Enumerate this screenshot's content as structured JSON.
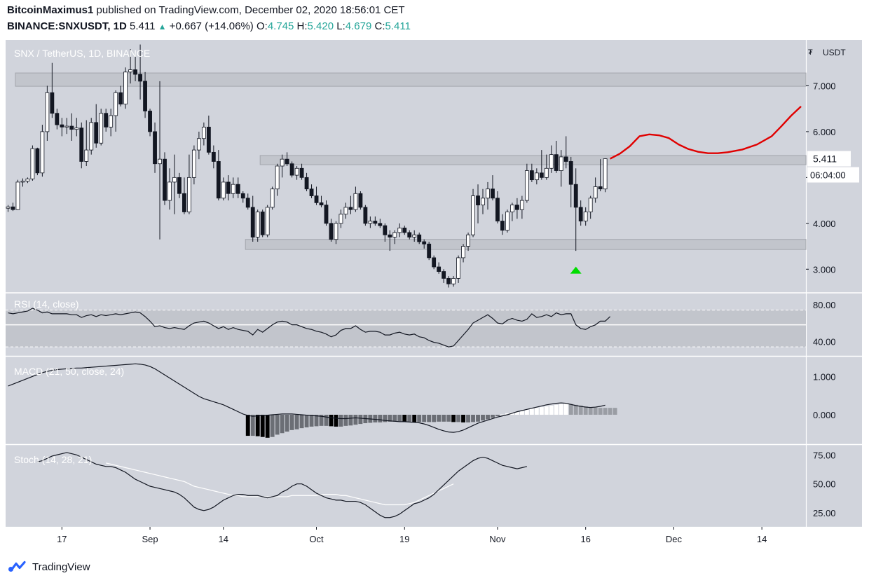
{
  "header": {
    "author": "BitcoinMaximus1",
    "published_text": "published on TradingView.com, December 02, 2020 18:56:01 CET",
    "symbol": "BINANCE:SNXUSDT, 1D",
    "last": "5.411",
    "change": "+0.667 (+14.06%)",
    "o_label": "O:",
    "o_value": "4.745",
    "h_label": "H:",
    "h_value": "5.420",
    "l_label": "L:",
    "l_value": "4.679",
    "c_label": "C:",
    "c_value": "5.411"
  },
  "footer": {
    "brand": "TradingView",
    "logo_icon": "tradingview-logo-icon"
  },
  "colors": {
    "bg": "#d1d4dc",
    "up": "#ffffff",
    "down": "#131722",
    "forecast": "#e00000",
    "arrow": "#00dd00",
    "rsi_band": "#c2c5cc"
  },
  "chart_data": {
    "type": "candlestick",
    "title": "SNX / TetherUS, 1D, BINANCE",
    "currency_label": "USDT",
    "currency_icon": "tether-currency-icon",
    "x_tick_labels": [
      "17",
      "Sep",
      "14",
      "Oct",
      "19",
      "Nov",
      "16",
      "Dec",
      "14"
    ],
    "x_tick_indices": [
      11,
      29,
      44,
      63,
      81,
      100,
      118,
      136,
      154
    ],
    "x_range": [
      -0.5,
      163
    ],
    "price_axis": {
      "ylim": [
        2.5,
        8.0
      ],
      "ticks": [
        3.0,
        4.0,
        5.0,
        6.0,
        7.0
      ],
      "tick_labels": [
        "3.000",
        "4.000",
        "5.000",
        "6.000",
        "7.000"
      ]
    },
    "last_price_label": "5.411",
    "countdown_label": "06:04:00",
    "candles": [
      [
        4.33,
        4.4,
        4.25,
        4.36
      ],
      [
        4.36,
        4.45,
        4.27,
        4.3
      ],
      [
        4.3,
        4.95,
        4.29,
        4.9
      ],
      [
        4.9,
        4.98,
        4.8,
        4.92
      ],
      [
        4.92,
        5.0,
        4.88,
        4.97
      ],
      [
        4.97,
        5.7,
        4.93,
        5.63
      ],
      [
        5.63,
        5.65,
        5.05,
        5.1
      ],
      [
        5.1,
        6.15,
        5.02,
        6.0
      ],
      [
        6.0,
        7.0,
        5.8,
        6.85
      ],
      [
        6.85,
        7.5,
        6.3,
        6.4
      ],
      [
        6.4,
        6.5,
        6.05,
        6.15
      ],
      [
        6.15,
        6.3,
        5.9,
        6.1
      ],
      [
        6.1,
        6.3,
        5.95,
        6.12
      ],
      [
        6.12,
        6.4,
        5.8,
        6.05
      ],
      [
        6.05,
        6.3,
        5.9,
        6.08
      ],
      [
        6.08,
        6.2,
        5.2,
        5.35
      ],
      [
        5.35,
        6.25,
        5.25,
        5.6
      ],
      [
        5.6,
        6.3,
        5.5,
        6.2
      ],
      [
        6.2,
        6.6,
        5.65,
        5.75
      ],
      [
        5.75,
        6.5,
        5.7,
        6.4
      ],
      [
        6.4,
        6.5,
        6.0,
        6.1
      ],
      [
        6.1,
        6.5,
        5.9,
        6.35
      ],
      [
        6.35,
        6.9,
        6.0,
        6.85
      ],
      [
        6.85,
        7.0,
        6.55,
        6.6
      ],
      [
        6.6,
        7.4,
        6.5,
        7.3
      ],
      [
        7.3,
        7.8,
        7.05,
        7.35
      ],
      [
        7.35,
        7.7,
        7.1,
        7.25
      ],
      [
        7.25,
        7.9,
        6.7,
        7.1
      ],
      [
        7.1,
        7.3,
        6.3,
        6.45
      ],
      [
        6.45,
        6.5,
        5.9,
        6.0
      ],
      [
        6.0,
        6.2,
        5.1,
        5.3
      ],
      [
        5.3,
        7.1,
        3.65,
        5.4
      ],
      [
        5.4,
        5.55,
        4.4,
        4.5
      ],
      [
        4.5,
        5.2,
        4.3,
        4.9
      ],
      [
        4.9,
        5.5,
        4.2,
        5.0
      ],
      [
        5.0,
        5.1,
        4.55,
        4.65
      ],
      [
        4.65,
        5.0,
        4.2,
        4.25
      ],
      [
        4.25,
        5.5,
        4.2,
        5.0
      ],
      [
        5.0,
        5.7,
        4.85,
        5.6
      ],
      [
        5.6,
        6.0,
        5.4,
        5.85
      ],
      [
        5.85,
        6.2,
        5.7,
        6.1
      ],
      [
        6.1,
        6.35,
        5.5,
        5.55
      ],
      [
        5.55,
        5.7,
        5.2,
        5.35
      ],
      [
        5.35,
        5.6,
        4.5,
        4.55
      ],
      [
        4.55,
        5.0,
        4.5,
        4.9
      ],
      [
        4.9,
        5.05,
        4.5,
        4.65
      ],
      [
        4.65,
        5.0,
        4.55,
        4.85
      ],
      [
        4.85,
        5.0,
        4.55,
        4.65
      ],
      [
        4.65,
        4.7,
        4.45,
        4.55
      ],
      [
        4.55,
        4.65,
        4.3,
        4.35
      ],
      [
        4.35,
        4.6,
        3.6,
        3.7
      ],
      [
        3.7,
        4.3,
        3.6,
        4.25
      ],
      [
        4.25,
        4.3,
        3.7,
        3.75
      ],
      [
        3.75,
        4.4,
        3.7,
        4.35
      ],
      [
        4.35,
        4.8,
        4.3,
        4.75
      ],
      [
        4.75,
        5.3,
        4.6,
        5.25
      ],
      [
        5.25,
        5.5,
        5.0,
        5.4
      ],
      [
        5.4,
        5.55,
        5.25,
        5.3
      ],
      [
        5.3,
        5.35,
        5.0,
        5.05
      ],
      [
        5.05,
        5.25,
        4.95,
        5.2
      ],
      [
        5.2,
        5.3,
        4.95,
        5.0
      ],
      [
        5.0,
        5.1,
        4.7,
        4.75
      ],
      [
        4.75,
        4.85,
        4.55,
        4.6
      ],
      [
        4.6,
        4.8,
        4.4,
        4.45
      ],
      [
        4.45,
        4.6,
        4.35,
        4.4
      ],
      [
        4.4,
        4.5,
        3.95,
        4.0
      ],
      [
        4.0,
        4.1,
        3.6,
        3.65
      ],
      [
        3.65,
        4.05,
        3.55,
        4.0
      ],
      [
        4.0,
        4.3,
        3.9,
        4.2
      ],
      [
        4.2,
        4.45,
        4.1,
        4.35
      ],
      [
        4.35,
        4.6,
        4.2,
        4.3
      ],
      [
        4.3,
        4.8,
        4.25,
        4.65
      ],
      [
        4.65,
        4.7,
        4.3,
        4.35
      ],
      [
        4.35,
        4.4,
        3.95,
        4.0
      ],
      [
        4.0,
        4.15,
        3.9,
        4.05
      ],
      [
        4.05,
        4.15,
        3.95,
        4.0
      ],
      [
        4.0,
        4.1,
        3.9,
        3.95
      ],
      [
        3.95,
        4.0,
        3.6,
        3.75
      ],
      [
        3.75,
        3.85,
        3.4,
        3.7
      ],
      [
        3.7,
        3.85,
        3.55,
        3.8
      ],
      [
        3.8,
        4.0,
        3.7,
        3.9
      ],
      [
        3.9,
        3.95,
        3.75,
        3.8
      ],
      [
        3.8,
        3.85,
        3.65,
        3.7
      ],
      [
        3.7,
        3.85,
        3.6,
        3.75
      ],
      [
        3.75,
        3.8,
        3.55,
        3.6
      ],
      [
        3.6,
        3.65,
        3.45,
        3.55
      ],
      [
        3.55,
        3.6,
        3.2,
        3.25
      ],
      [
        3.25,
        3.3,
        3.0,
        3.05
      ],
      [
        3.05,
        3.15,
        2.9,
        2.95
      ],
      [
        2.95,
        3.0,
        2.7,
        2.8
      ],
      [
        2.8,
        2.85,
        2.6,
        2.68
      ],
      [
        2.68,
        2.85,
        2.62,
        2.8
      ],
      [
        2.8,
        3.3,
        2.7,
        3.25
      ],
      [
        3.25,
        3.55,
        3.15,
        3.5
      ],
      [
        3.5,
        3.8,
        3.4,
        3.75
      ],
      [
        3.75,
        4.75,
        3.7,
        4.6
      ],
      [
        4.6,
        4.85,
        4.0,
        4.4
      ],
      [
        4.4,
        4.75,
        4.2,
        4.55
      ],
      [
        4.55,
        4.9,
        4.3,
        4.75
      ],
      [
        4.75,
        5.05,
        4.5,
        4.55
      ],
      [
        4.55,
        4.7,
        4.0,
        4.05
      ],
      [
        4.05,
        4.2,
        3.75,
        3.85
      ],
      [
        3.85,
        4.3,
        3.8,
        4.25
      ],
      [
        4.25,
        4.45,
        4.05,
        4.4
      ],
      [
        4.4,
        4.55,
        4.1,
        4.3
      ],
      [
        4.3,
        4.6,
        4.1,
        4.5
      ],
      [
        4.5,
        5.3,
        4.45,
        5.15
      ],
      [
        5.15,
        5.3,
        4.9,
        4.95
      ],
      [
        4.95,
        5.2,
        4.85,
        5.1
      ],
      [
        5.1,
        5.6,
        4.95,
        5.0
      ],
      [
        5.0,
        5.5,
        4.95,
        5.2
      ],
      [
        5.2,
        5.7,
        5.1,
        5.5
      ],
      [
        5.5,
        5.8,
        5.1,
        5.15
      ],
      [
        5.15,
        5.6,
        4.8,
        5.45
      ],
      [
        5.45,
        5.9,
        5.2,
        5.35
      ],
      [
        5.35,
        5.45,
        4.35,
        4.85
      ],
      [
        4.85,
        5.2,
        3.4,
        4.35
      ],
      [
        4.35,
        4.5,
        3.95,
        4.05
      ],
      [
        4.05,
        4.35,
        3.95,
        4.25
      ],
      [
        4.25,
        4.6,
        4.1,
        4.55
      ],
      [
        4.55,
        5.0,
        4.45,
        4.8
      ],
      [
        4.8,
        5.4,
        4.7,
        4.75
      ],
      [
        4.75,
        5.42,
        4.68,
        5.41
      ]
    ],
    "zones": [
      {
        "from": 6.99,
        "to": 7.28
      },
      {
        "from": 5.28,
        "to": 5.48
      },
      {
        "from": 3.43,
        "to": 3.65
      }
    ],
    "forecast_path": {
      "x": [
        123,
        125,
        127,
        129,
        131,
        133,
        135,
        137,
        139,
        141,
        143,
        145,
        147,
        150,
        153,
        156,
        158,
        160,
        162
      ],
      "y": [
        5.41,
        5.52,
        5.68,
        5.9,
        5.94,
        5.92,
        5.86,
        5.72,
        5.62,
        5.56,
        5.53,
        5.53,
        5.55,
        5.61,
        5.72,
        5.9,
        6.12,
        6.35,
        6.55
      ]
    },
    "buy_signal_index": 116,
    "buy_signal_price": 2.98,
    "rsi": {
      "title": "RSI (14, close)",
      "ylim": [
        25,
        92
      ],
      "ticks": [
        40,
        80
      ],
      "tick_labels": [
        "40.00",
        "80.00"
      ],
      "bands": [
        34,
        58,
        74
      ],
      "values": [
        71,
        70,
        71,
        72,
        73,
        76,
        74,
        71,
        72,
        70,
        70,
        70,
        70,
        69,
        69,
        66,
        68,
        69,
        67,
        69,
        68,
        69,
        70,
        69,
        70,
        71,
        72,
        71,
        67,
        62,
        56,
        57,
        55,
        54,
        55,
        54,
        53,
        57,
        60,
        61,
        62,
        60,
        57,
        54,
        56,
        53,
        55,
        53,
        52,
        51,
        47,
        53,
        50,
        54,
        58,
        61,
        62,
        61,
        58,
        58,
        56,
        54,
        53,
        51,
        50,
        48,
        45,
        47,
        52,
        54,
        54,
        57,
        53,
        50,
        51,
        51,
        50,
        47,
        47,
        49,
        50,
        48,
        47,
        48,
        45,
        44,
        41,
        39,
        38,
        36,
        34,
        35,
        41,
        47,
        53,
        60,
        63,
        66,
        69,
        65,
        60,
        59,
        63,
        65,
        63,
        62,
        64,
        70,
        66,
        67,
        69,
        67,
        71,
        69,
        70,
        70,
        58,
        54,
        53,
        56,
        58,
        62,
        62,
        67
      ]
    },
    "macd": {
      "title": "MACD (21, 50, close, 24)",
      "ylim": [
        -0.75,
        1.5
      ],
      "ticks": [
        0.0,
        1.0
      ],
      "tick_labels": [
        "0.000",
        "1.000"
      ],
      "macd_line": [
        0.75,
        0.8,
        0.85,
        0.9,
        0.95,
        1.0,
        1.05,
        1.1,
        1.13,
        1.16,
        1.18,
        1.19,
        1.2,
        1.21,
        1.22,
        1.22,
        1.23,
        1.24,
        1.25,
        1.26,
        1.27,
        1.28,
        1.29,
        1.3,
        1.31,
        1.32,
        1.33,
        1.32,
        1.3,
        1.26,
        1.2,
        1.12,
        1.04,
        0.96,
        0.88,
        0.8,
        0.72,
        0.64,
        0.56,
        0.48,
        0.42,
        0.38,
        0.34,
        0.3,
        0.26,
        0.2,
        0.14,
        0.08,
        0.02,
        -0.02,
        -0.04,
        -0.03,
        -0.02,
        -0.01,
        0.0,
        0.01,
        0.02,
        0.02,
        0.02,
        0.01,
        0.0,
        -0.01,
        -0.02,
        -0.03,
        -0.04,
        -0.06,
        -0.08,
        -0.09,
        -0.1,
        -0.1,
        -0.09,
        -0.08,
        -0.09,
        -0.1,
        -0.11,
        -0.12,
        -0.13,
        -0.15,
        -0.16,
        -0.17,
        -0.18,
        -0.18,
        -0.19,
        -0.2,
        -0.21,
        -0.24,
        -0.28,
        -0.33,
        -0.38,
        -0.42,
        -0.45,
        -0.46,
        -0.44,
        -0.4,
        -0.34,
        -0.28,
        -0.22,
        -0.18,
        -0.14,
        -0.1,
        -0.06,
        -0.03,
        0.0,
        0.04,
        0.08,
        0.11,
        0.14,
        0.17,
        0.2,
        0.23,
        0.26,
        0.28,
        0.3,
        0.31,
        0.3,
        0.27,
        0.24,
        0.22,
        0.2,
        0.19,
        0.2,
        0.22,
        0.25
      ],
      "histogram": [
        0,
        0,
        0,
        0,
        0,
        0,
        0,
        0,
        0,
        0,
        0,
        0,
        0,
        0,
        0,
        0,
        0,
        0,
        0,
        0,
        0,
        0,
        0,
        0,
        0,
        0,
        0,
        0,
        0,
        0,
        0,
        0,
        0,
        0,
        0,
        0,
        0,
        0,
        0,
        0,
        0,
        0,
        0,
        0,
        0,
        0,
        0,
        0,
        0,
        -0.55,
        -0.55,
        -0.56,
        -0.58,
        -0.6,
        -0.58,
        -0.52,
        -0.48,
        -0.44,
        -0.4,
        -0.38,
        -0.35,
        -0.33,
        -0.31,
        -0.3,
        -0.29,
        -0.29,
        -0.3,
        -0.31,
        -0.31,
        -0.29,
        -0.28,
        -0.26,
        -0.24,
        -0.22,
        -0.21,
        -0.2,
        -0.2,
        -0.19,
        -0.18,
        -0.18,
        -0.17,
        -0.18,
        -0.18,
        -0.19,
        -0.19,
        -0.19,
        -0.19,
        -0.19,
        -0.18,
        -0.18,
        -0.18,
        -0.19,
        -0.19,
        -0.2,
        -0.2,
        -0.19,
        -0.18,
        -0.15,
        -0.12,
        -0.08,
        -0.04,
        0.01,
        0.04,
        0.06,
        0.08,
        0.1,
        0.13,
        0.16,
        0.18,
        0.2,
        0.22,
        0.24,
        0.26,
        0.28,
        0.3,
        0.28,
        0.26,
        0.24,
        0.22,
        0.2,
        0.19,
        0.18,
        0.18,
        0.18,
        0.18
      ]
    },
    "stoch": {
      "title": "Stoch (14, 28, 21)",
      "ylim": [
        13,
        83
      ],
      "ticks": [
        25,
        50,
        75
      ],
      "tick_labels": [
        "25.00",
        "50.00",
        "75.00"
      ],
      "k": [
        null,
        null,
        null,
        null,
        null,
        null,
        69,
        70,
        72,
        74,
        75,
        76,
        77,
        76,
        75,
        73,
        71,
        69,
        67,
        66,
        65,
        65,
        64,
        62,
        60,
        57,
        54,
        52,
        50,
        48,
        47,
        46,
        45,
        44,
        43,
        41,
        38,
        34,
        30,
        28,
        27,
        28,
        30,
        33,
        36,
        38,
        40,
        41,
        41,
        40,
        40,
        40,
        39,
        38,
        39,
        40,
        43,
        45,
        48,
        50,
        50,
        48,
        45,
        42,
        40,
        38,
        37,
        36,
        36,
        35,
        35,
        35,
        34,
        32,
        29,
        26,
        23,
        21,
        21,
        22,
        24,
        27,
        30,
        33,
        34,
        36,
        38,
        41,
        45,
        49,
        53,
        57,
        61,
        64,
        67,
        70,
        72,
        73,
        72,
        70,
        68,
        66,
        65,
        64,
        63,
        64,
        65
      ],
      "d": [
        null,
        null,
        null,
        null,
        null,
        null,
        null,
        null,
        null,
        null,
        null,
        null,
        null,
        null,
        null,
        null,
        null,
        null,
        null,
        null,
        68,
        67,
        66,
        65,
        64,
        63,
        62,
        61,
        60,
        59,
        58,
        57,
        56,
        55,
        54,
        53,
        52,
        50,
        48,
        47,
        46,
        45,
        44,
        43,
        42,
        41,
        40,
        40,
        39,
        39,
        39,
        39,
        39,
        39,
        39,
        39,
        39,
        39,
        40,
        40,
        40,
        40,
        40,
        40,
        41,
        41,
        41,
        41,
        40,
        40,
        39,
        38,
        37,
        36,
        35,
        34,
        33,
        32,
        32,
        32,
        32,
        32,
        33,
        34,
        36,
        38,
        40,
        42,
        44,
        46,
        48,
        50
      ]
    }
  }
}
